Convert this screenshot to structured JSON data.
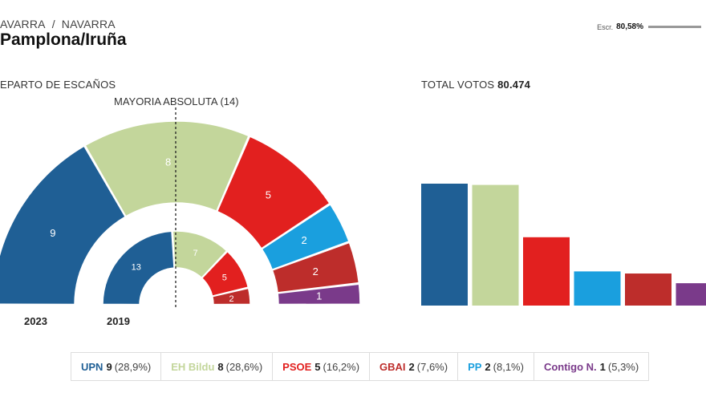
{
  "header": {
    "breadcrumb": [
      "AVARRA",
      "NAVARRA"
    ],
    "breadcrumb_sep": "/",
    "title": "Pamplona/Iruña",
    "escrutinio_label": "Escr.",
    "escrutinio_value": "80,58%"
  },
  "seats_section": {
    "label": "EPARTO DE ESCAÑOS",
    "majority_label": "MAYORIA ABSOLUTA (14)",
    "year_current": "2023",
    "year_previous": "2019"
  },
  "votes_section": {
    "label_prefix": "TOTAL VOTOS",
    "total": "80.474"
  },
  "parties": [
    {
      "name": "UPN",
      "seats_2023": 9,
      "pct": "28,9%",
      "seats_2019": 13,
      "color": "#1f5f95",
      "seats_label": "9",
      "pct_label": "(28,9%)"
    },
    {
      "name": "EH Bildu",
      "seats_2023": 8,
      "pct": "28,6%",
      "seats_2019": 7,
      "color": "#c3d69b",
      "seats_label": "8",
      "pct_label": "(28,6%)"
    },
    {
      "name": "PSOE",
      "seats_2023": 5,
      "pct": "16,2%",
      "seats_2019": 5,
      "color": "#e2201f",
      "seats_label": "5",
      "pct_label": "(16,2%)"
    },
    {
      "name": "GBAI",
      "seats_2023": 2,
      "pct": "7,6%",
      "seats_2019": 2,
      "color": "#bd2d2b",
      "seats_label": "2",
      "pct_label": "(7,6%)"
    },
    {
      "name": "PP",
      "seats_2023": 2,
      "pct": "8,1%",
      "seats_2019": 0,
      "color": "#1a9fde",
      "seats_label": "2",
      "pct_label": "(8,1%)"
    },
    {
      "name": "Contigo N.",
      "seats_2023": 1,
      "pct": "5,3%",
      "seats_2019": 0,
      "color": "#7a3a8a",
      "seats_label": "1",
      "pct_label": "(5,3%)"
    }
  ],
  "chart_data": [
    {
      "type": "pie",
      "title": "EPARTO DE ESCAÑOS",
      "categories": [
        "UPN",
        "EH Bildu",
        "PSOE",
        "PP",
        "GBAI",
        "Contigo N."
      ],
      "series": [
        {
          "name": "2023",
          "values": [
            9,
            8,
            5,
            2,
            2,
            1
          ]
        },
        {
          "name": "2019",
          "values": [
            13,
            7,
            5,
            0,
            2,
            0
          ]
        }
      ]
    },
    {
      "type": "bar",
      "title": "TOTAL VOTOS 80.474",
      "categories": [
        "UPN",
        "EH Bildu",
        "PSOE",
        "PP",
        "GBAI",
        "Contigo N."
      ],
      "values": [
        28.9,
        28.6,
        16.2,
        8.1,
        7.6,
        5.3
      ]
    }
  ]
}
